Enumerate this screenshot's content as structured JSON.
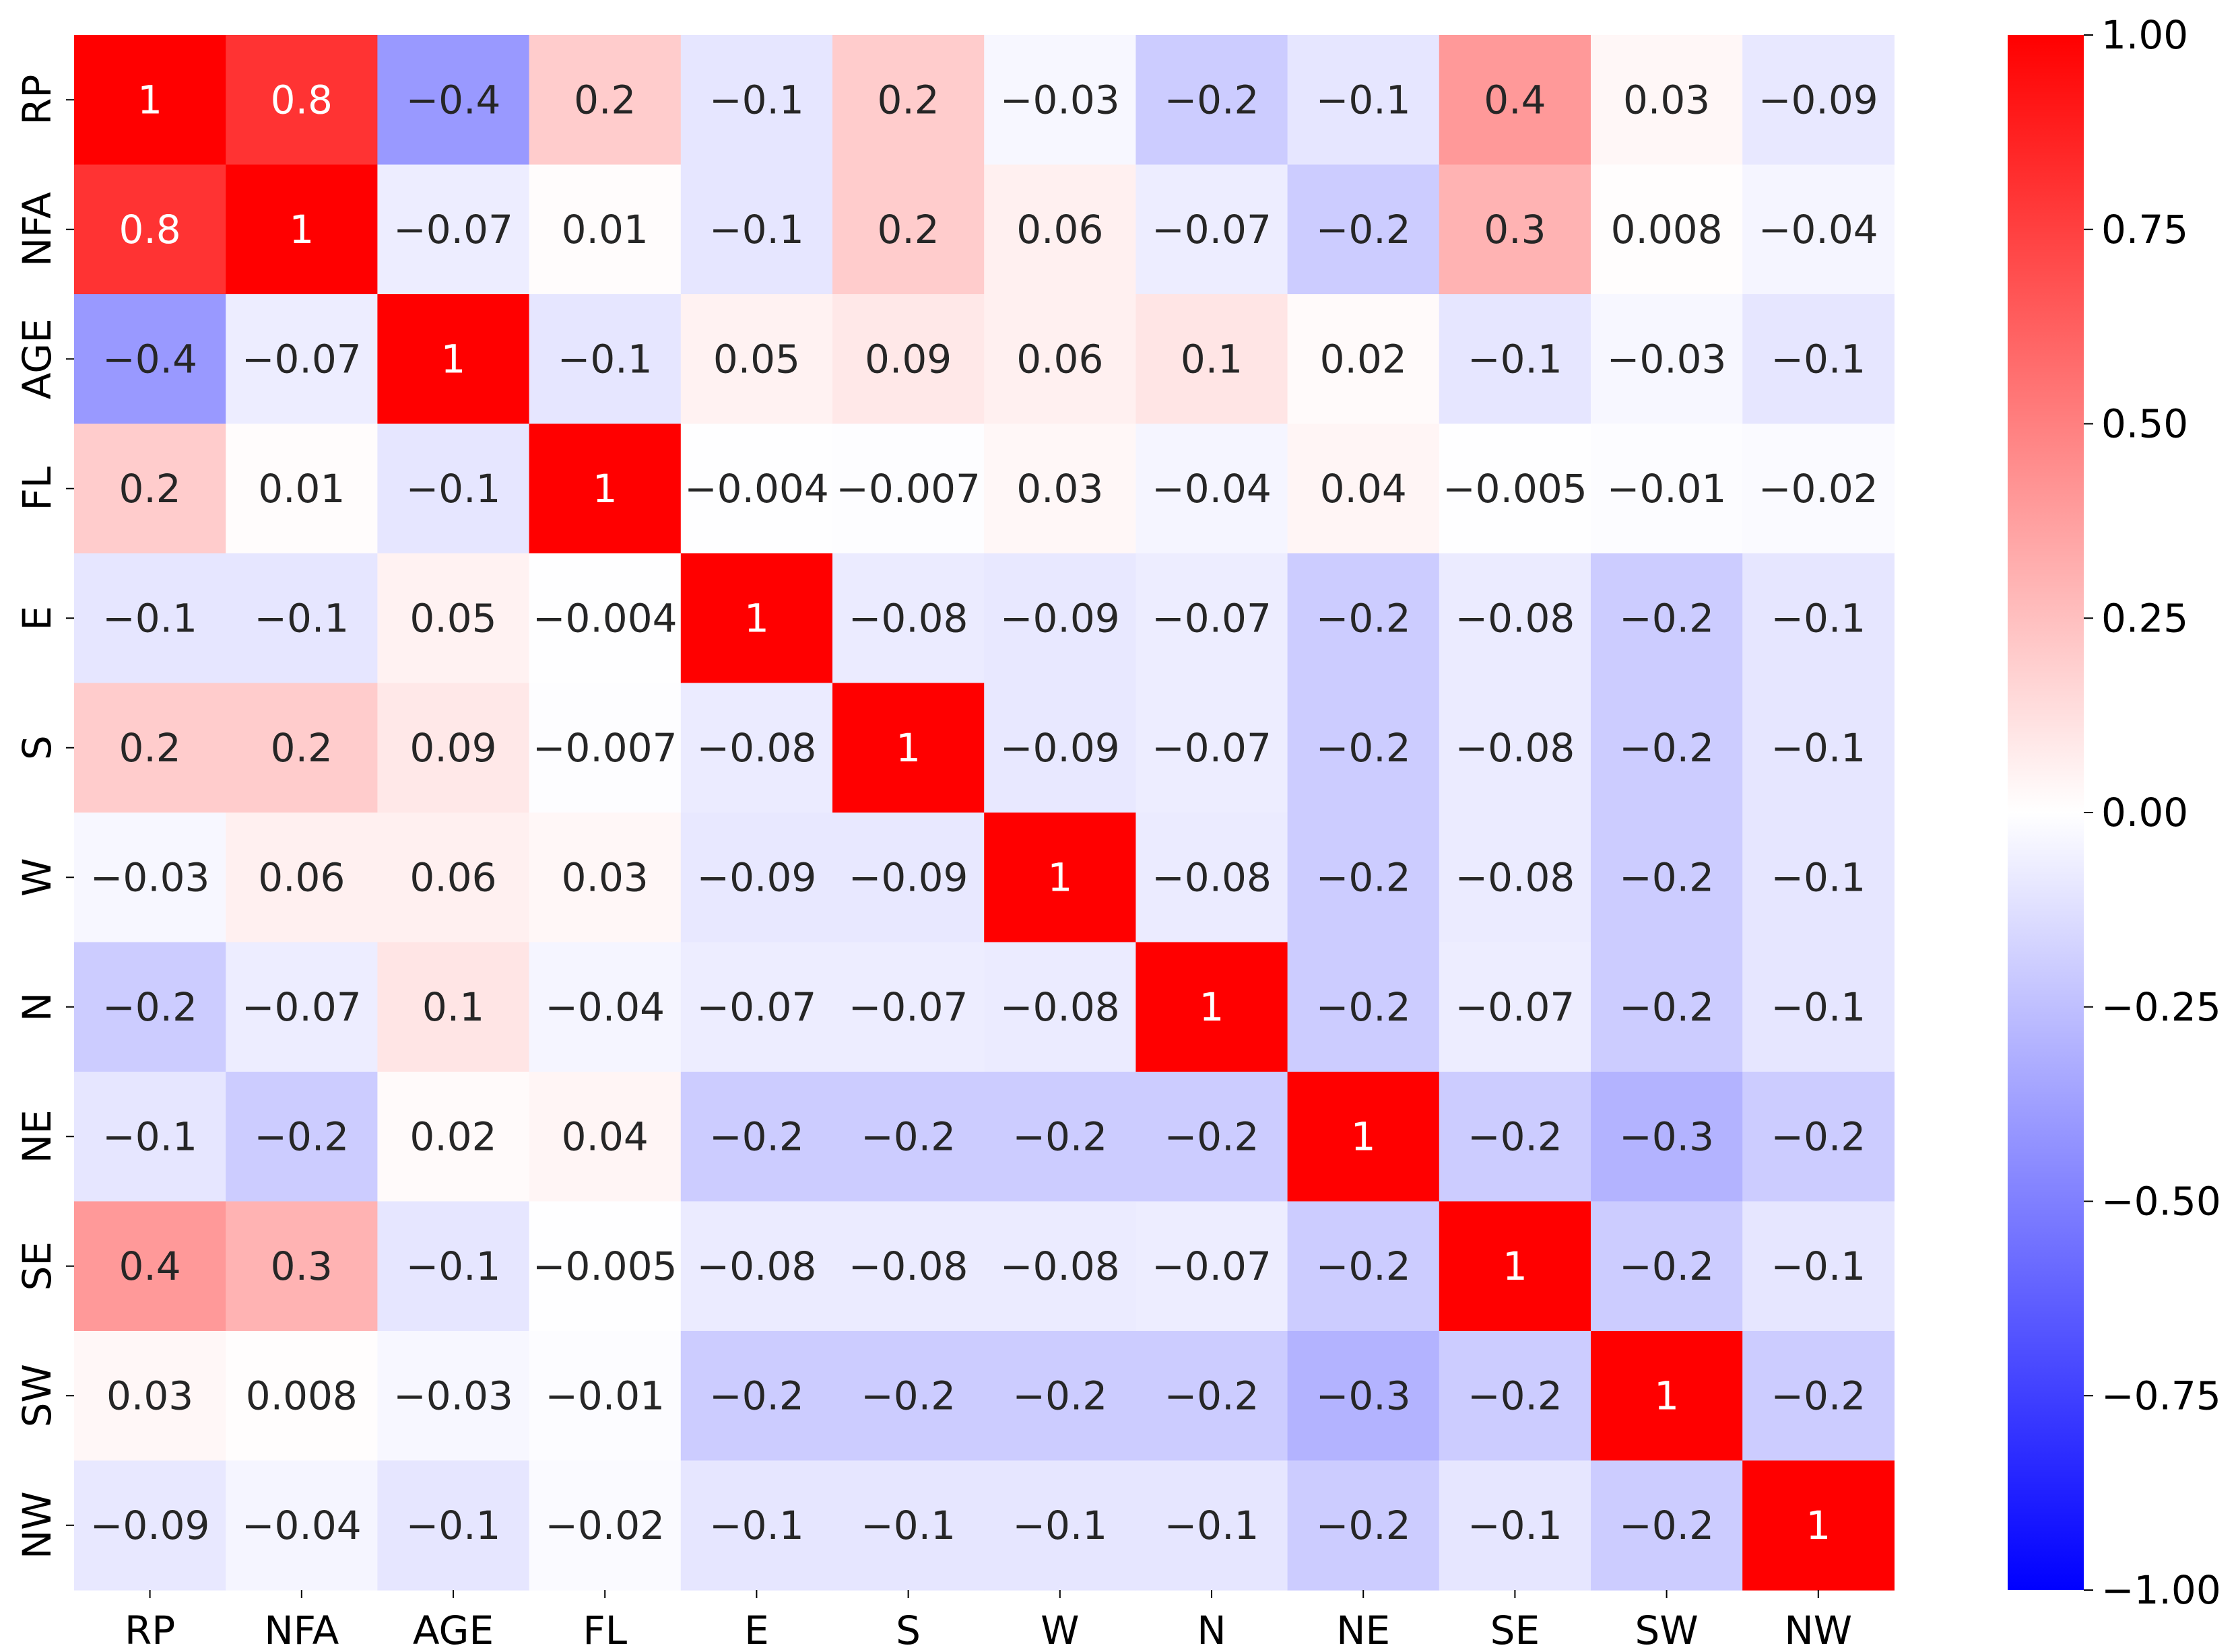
{
  "chart_data": {
    "type": "heatmap",
    "x_labels": [
      "RP",
      "NFA",
      "AGE",
      "FL",
      "E",
      "S",
      "W",
      "N",
      "NE",
      "SE",
      "SW",
      "NW"
    ],
    "y_labels": [
      "RP",
      "NFA",
      "AGE",
      "FL",
      "E",
      "S",
      "W",
      "N",
      "NE",
      "SE",
      "SW",
      "NW"
    ],
    "values": [
      [
        1,
        0.8,
        -0.4,
        0.2,
        -0.1,
        0.2,
        -0.03,
        -0.2,
        -0.1,
        0.4,
        0.03,
        -0.09
      ],
      [
        0.8,
        1,
        -0.07,
        0.01,
        -0.1,
        0.2,
        0.06,
        -0.07,
        -0.2,
        0.3,
        0.008,
        -0.04
      ],
      [
        -0.4,
        -0.07,
        1,
        -0.1,
        0.05,
        0.09,
        0.06,
        0.1,
        0.02,
        -0.1,
        -0.03,
        -0.1
      ],
      [
        0.2,
        0.01,
        -0.1,
        1,
        -0.004,
        -0.007,
        0.03,
        -0.04,
        0.04,
        -0.005,
        -0.01,
        -0.02
      ],
      [
        -0.1,
        -0.1,
        0.05,
        -0.004,
        1,
        -0.08,
        -0.09,
        -0.07,
        -0.2,
        -0.08,
        -0.2,
        -0.1
      ],
      [
        0.2,
        0.2,
        0.09,
        -0.007,
        -0.08,
        1,
        -0.09,
        -0.07,
        -0.2,
        -0.08,
        -0.2,
        -0.1
      ],
      [
        -0.03,
        0.06,
        0.06,
        0.03,
        -0.09,
        -0.09,
        1,
        -0.08,
        -0.2,
        -0.08,
        -0.2,
        -0.1
      ],
      [
        -0.2,
        -0.07,
        0.1,
        -0.04,
        -0.07,
        -0.07,
        -0.08,
        1,
        -0.2,
        -0.07,
        -0.2,
        -0.1
      ],
      [
        -0.1,
        -0.2,
        0.02,
        0.04,
        -0.2,
        -0.2,
        -0.2,
        -0.2,
        1,
        -0.2,
        -0.3,
        -0.2
      ],
      [
        0.4,
        0.3,
        -0.1,
        -0.005,
        -0.08,
        -0.08,
        -0.08,
        -0.07,
        -0.2,
        1,
        -0.2,
        -0.1
      ],
      [
        0.03,
        0.008,
        -0.03,
        -0.01,
        -0.2,
        -0.2,
        -0.2,
        -0.2,
        -0.3,
        -0.2,
        1,
        -0.2
      ],
      [
        -0.09,
        -0.04,
        -0.1,
        -0.02,
        -0.1,
        -0.1,
        -0.1,
        -0.1,
        -0.2,
        -0.1,
        -0.2,
        1
      ]
    ],
    "value_labels": [
      [
        "1",
        "0.8",
        "−0.4",
        "0.2",
        "−0.1",
        "0.2",
        "−0.03",
        "−0.2",
        "−0.1",
        "0.4",
        "0.03",
        "−0.09"
      ],
      [
        "0.8",
        "1",
        "−0.07",
        "0.01",
        "−0.1",
        "0.2",
        "0.06",
        "−0.07",
        "−0.2",
        "0.3",
        "0.008",
        "−0.04"
      ],
      [
        "−0.4",
        "−0.07",
        "1",
        "−0.1",
        "0.05",
        "0.09",
        "0.06",
        "0.1",
        "0.02",
        "−0.1",
        "−0.03",
        "−0.1"
      ],
      [
        "0.2",
        "0.01",
        "−0.1",
        "1",
        "−0.004",
        "−0.007",
        "0.03",
        "−0.04",
        "0.04",
        "−0.005",
        "−0.01",
        "−0.02"
      ],
      [
        "−0.1",
        "−0.1",
        "0.05",
        "−0.004",
        "1",
        "−0.08",
        "−0.09",
        "−0.07",
        "−0.2",
        "−0.08",
        "−0.2",
        "−0.1"
      ],
      [
        "0.2",
        "0.2",
        "0.09",
        "−0.007",
        "−0.08",
        "1",
        "−0.09",
        "−0.07",
        "−0.2",
        "−0.08",
        "−0.2",
        "−0.1"
      ],
      [
        "−0.03",
        "0.06",
        "0.06",
        "0.03",
        "−0.09",
        "−0.09",
        "1",
        "−0.08",
        "−0.2",
        "−0.08",
        "−0.2",
        "−0.1"
      ],
      [
        "−0.2",
        "−0.07",
        "0.1",
        "−0.04",
        "−0.07",
        "−0.07",
        "−0.08",
        "1",
        "−0.2",
        "−0.07",
        "−0.2",
        "−0.1"
      ],
      [
        "−0.1",
        "−0.2",
        "0.02",
        "0.04",
        "−0.2",
        "−0.2",
        "−0.2",
        "−0.2",
        "1",
        "−0.2",
        "−0.3",
        "−0.2"
      ],
      [
        "0.4",
        "0.3",
        "−0.1",
        "−0.005",
        "−0.08",
        "−0.08",
        "−0.08",
        "−0.07",
        "−0.2",
        "1",
        "−0.2",
        "−0.1"
      ],
      [
        "0.03",
        "0.008",
        "−0.03",
        "−0.01",
        "−0.2",
        "−0.2",
        "−0.2",
        "−0.2",
        "−0.3",
        "−0.2",
        "1",
        "−0.2"
      ],
      [
        "−0.09",
        "−0.04",
        "−0.1",
        "−0.02",
        "−0.1",
        "−0.1",
        "−0.1",
        "−0.1",
        "−0.2",
        "−0.1",
        "−0.2",
        "1"
      ]
    ],
    "colorscale": {
      "name": "bwr",
      "min": -1.0,
      "max": 1.0,
      "low_color": "#0000ff",
      "mid_color": "#ffffff",
      "high_color": "#ff0000"
    },
    "colorbar": {
      "ticks": [
        1.0,
        0.75,
        0.5,
        0.25,
        0.0,
        -0.25,
        -0.5,
        -0.75,
        -1.0
      ],
      "tick_labels": [
        "1.00",
        "0.75",
        "0.50",
        "0.25",
        "0.00",
        "−0.25",
        "−0.50",
        "−0.75",
        "−1.00"
      ],
      "placement": "right"
    },
    "title": "",
    "xlabel": "",
    "ylabel": "",
    "grid": false
  }
}
